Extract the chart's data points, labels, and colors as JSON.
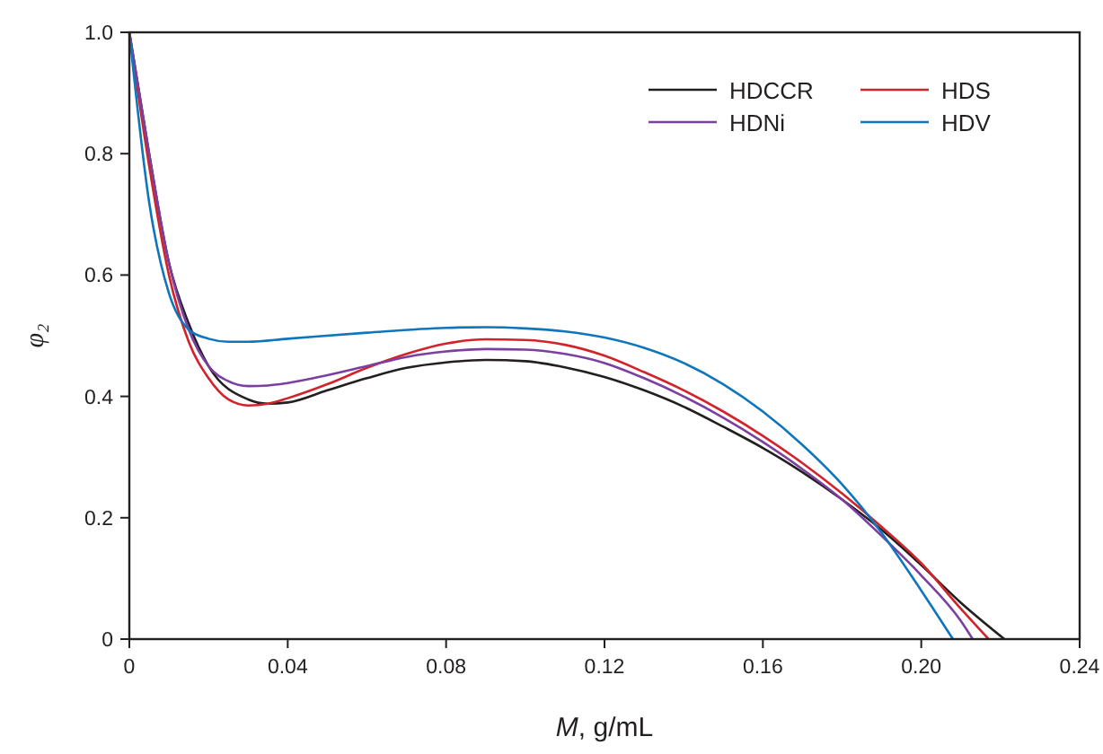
{
  "chart_data": {
    "type": "line",
    "xlabel": "M, g/mL",
    "ylabel": "φ₂",
    "xlim": [
      0,
      0.24
    ],
    "xticks": [
      0,
      0.04,
      0.08,
      0.12,
      0.16,
      {
        "value": 0.2,
        "label": "0.20"
      },
      0.24
    ],
    "ylim": [
      0,
      1
    ],
    "yticks": [
      0,
      0.2,
      0.4,
      0.6,
      0.8,
      {
        "value": 1,
        "label": "1.0"
      }
    ],
    "grid": false,
    "legend": "top right",
    "marker": "none",
    "line_style": "solid",
    "series": [
      {
        "name": "HDCCR",
        "color": "#231f20",
        "x": [
          0,
          0.005,
          0.01,
          0.015,
          0.02,
          0.03,
          0.035,
          0.04,
          0.05,
          0.06,
          0.07,
          0.08,
          0.09,
          0.1,
          0.11,
          0.12,
          0.13,
          0.14,
          0.15,
          0.16,
          0.17,
          0.18,
          0.19,
          0.2,
          0.21,
          0.221
        ],
        "values": [
          1,
          0.8,
          0.62,
          0.52,
          0.45,
          0.395,
          0.388,
          0.39,
          0.41,
          0.43,
          0.447,
          0.456,
          0.46,
          0.458,
          0.448,
          0.432,
          0.41,
          0.383,
          0.35,
          0.315,
          0.275,
          0.23,
          0.18,
          0.122,
          0.06,
          0
        ]
      },
      {
        "name": "HDS",
        "color": "#d2232a",
        "x": [
          0,
          0.005,
          0.01,
          0.015,
          0.02,
          0.025,
          0.03,
          0.035,
          0.04,
          0.05,
          0.06,
          0.07,
          0.08,
          0.09,
          0.1,
          0.11,
          0.12,
          0.13,
          0.14,
          0.15,
          0.16,
          0.17,
          0.18,
          0.19,
          0.2,
          0.21,
          0.217
        ],
        "values": [
          1,
          0.78,
          0.6,
          0.49,
          0.43,
          0.395,
          0.385,
          0.388,
          0.397,
          0.42,
          0.447,
          0.47,
          0.487,
          0.494,
          0.493,
          0.485,
          0.467,
          0.44,
          0.41,
          0.375,
          0.335,
          0.29,
          0.24,
          0.185,
          0.125,
          0.05,
          0
        ]
      },
      {
        "name": "HDNi",
        "color": "#7b3fa0",
        "x": [
          0,
          0.005,
          0.01,
          0.015,
          0.02,
          0.025,
          0.03,
          0.035,
          0.04,
          0.05,
          0.06,
          0.07,
          0.08,
          0.09,
          0.1,
          0.11,
          0.12,
          0.13,
          0.14,
          0.15,
          0.16,
          0.17,
          0.18,
          0.19,
          0.2,
          0.21,
          0.213
        ],
        "values": [
          1,
          0.8,
          0.62,
          0.51,
          0.45,
          0.425,
          0.417,
          0.418,
          0.422,
          0.435,
          0.45,
          0.465,
          0.474,
          0.478,
          0.477,
          0.47,
          0.455,
          0.43,
          0.4,
          0.365,
          0.325,
          0.28,
          0.23,
          0.17,
          0.105,
          0.03,
          0
        ]
      },
      {
        "name": "HDV",
        "color": "#0f75bc",
        "x": [
          0,
          0.005,
          0.01,
          0.015,
          0.02,
          0.025,
          0.03,
          0.04,
          0.06,
          0.08,
          0.09,
          0.1,
          0.11,
          0.12,
          0.13,
          0.14,
          0.15,
          0.16,
          0.17,
          0.18,
          0.19,
          0.2,
          0.208
        ],
        "values": [
          1,
          0.72,
          0.57,
          0.51,
          0.495,
          0.49,
          0.49,
          0.495,
          0.505,
          0.513,
          0.514,
          0.512,
          0.507,
          0.497,
          0.48,
          0.455,
          0.42,
          0.375,
          0.32,
          0.255,
          0.175,
          0.08,
          0
        ]
      }
    ]
  }
}
